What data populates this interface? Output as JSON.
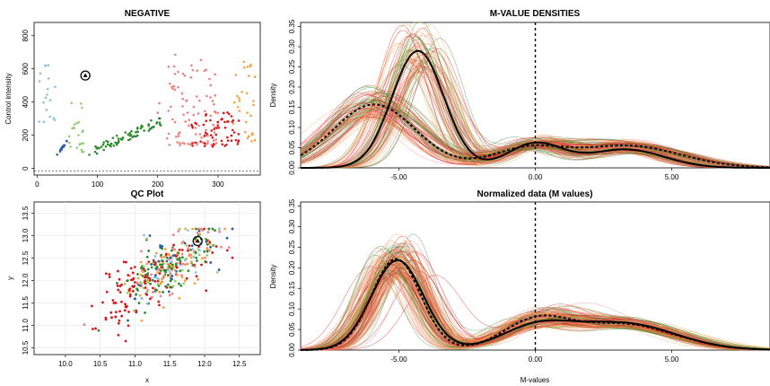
{
  "colors": {
    "green": "#2e8b2e",
    "lightgreen": "#90d070",
    "red": "#d7191c",
    "pink": "#f08080",
    "orange": "#f4a040",
    "lightblue": "#8ec0e0",
    "blue": "#2b5fa8",
    "black": "#000000"
  },
  "chart_data": [
    {
      "type": "scatter",
      "title": "NEGATIVE",
      "xlabel": "",
      "ylabel": "Control intensity",
      "xlim": [
        -5,
        370
      ],
      "ylim": [
        -40,
        880
      ],
      "xticks": [
        0,
        100,
        200,
        300
      ],
      "yticks": [
        0,
        200,
        400,
        600,
        800
      ],
      "grid": false,
      "reference_line_y": -15,
      "highlight": {
        "x": 80,
        "y": 560,
        "symbol": "triangle-in-circle"
      },
      "groups": [
        {
          "color": "lightblue",
          "x_range": [
            3,
            30
          ],
          "y_range": [
            280,
            640
          ],
          "n": 18
        },
        {
          "color": "blue",
          "x_range": [
            33,
            50
          ],
          "y_range": [
            70,
            160
          ],
          "n": 14
        },
        {
          "color": "lightgreen",
          "x_range": [
            50,
            80
          ],
          "y_range": [
            90,
            300
          ],
          "n": 20
        },
        {
          "color": "lightgreen",
          "x_range": [
            55,
            78
          ],
          "y_range": [
            300,
            440
          ],
          "n": 3
        },
        {
          "color": "green",
          "x_range": [
            85,
            205
          ],
          "y_range": [
            60,
            310
          ],
          "n": 70
        },
        {
          "color": "pink",
          "x_range": [
            200,
            300
          ],
          "y_range": [
            140,
            690
          ],
          "n": 90
        },
        {
          "color": "red",
          "x_range": [
            255,
            335
          ],
          "y_range": [
            130,
            340
          ],
          "n": 60
        },
        {
          "color": "orange",
          "x_range": [
            325,
            362
          ],
          "y_range": [
            160,
            650
          ],
          "n": 30
        }
      ]
    },
    {
      "type": "scatter",
      "title": "QC Plot",
      "xlabel": "x",
      "ylabel": "y",
      "xlim": [
        9.55,
        12.8
      ],
      "ylim": [
        10.35,
        13.75
      ],
      "xticks": [
        10.0,
        10.5,
        11.0,
        11.5,
        12.0,
        12.5
      ],
      "yticks": [
        10.5,
        11.0,
        11.5,
        12.0,
        12.5,
        13.0,
        13.5
      ],
      "grid": true,
      "highlight": {
        "x": 11.9,
        "y": 12.88,
        "symbol": "triangle-in-circle"
      },
      "cloud": {
        "center": [
          11.45,
          12.25
        ],
        "slope": 1.0,
        "spread": [
          0.42,
          0.33
        ],
        "n": 420
      }
    },
    {
      "type": "line",
      "title": "M-VALUE DENSITIES",
      "xlabel": "",
      "ylabel": "Density",
      "xlim": [
        -8.6,
        8.6
      ],
      "ylim": [
        0,
        0.36
      ],
      "xticks": [
        -5,
        0,
        5
      ],
      "yticks": [
        0.0,
        0.05,
        0.1,
        0.15,
        0.2,
        0.25,
        0.3,
        0.35
      ],
      "vline_x": 0,
      "bundle_count": 140,
      "bundle_palette": [
        "green",
        "red",
        "pink",
        "orange"
      ],
      "series": [
        {
          "style": "solid-black",
          "components": [
            [
              0.69,
              -4.3,
              0.95
            ],
            [
              0.15,
              0.0,
              1.0
            ],
            [
              0.16,
              3.3,
              1.4
            ]
          ]
        },
        {
          "style": "dashed-black",
          "components": [
            [
              0.59,
              -5.9,
              1.5
            ],
            [
              0.15,
              -0.3,
              1.3
            ],
            [
              0.26,
              3.4,
              1.9
            ]
          ]
        }
      ]
    },
    {
      "type": "line",
      "title": "Normalized data (M values)",
      "xlabel": "M-values",
      "ylabel": "Density",
      "xlim": [
        -8.6,
        8.6
      ],
      "ylim": [
        0,
        0.36
      ],
      "xticks": [
        -5,
        0,
        5
      ],
      "yticks": [
        0.0,
        0.05,
        0.1,
        0.15,
        0.2,
        0.25,
        0.3,
        0.35
      ],
      "vline_x": 0,
      "bundle_count": 140,
      "bundle_palette": [
        "red",
        "orange",
        "pink",
        "green"
      ],
      "series": [
        {
          "style": "solid-black",
          "components": [
            [
              0.52,
              -5.05,
              0.95
            ],
            [
              0.17,
              0.0,
              1.3
            ],
            [
              0.31,
              3.2,
              1.9
            ]
          ]
        },
        {
          "style": "dashed-black",
          "components": [
            [
              0.5,
              -5.1,
              0.9
            ],
            [
              0.2,
              0.0,
              1.2
            ],
            [
              0.3,
              3.2,
              1.9
            ]
          ]
        }
      ]
    }
  ]
}
